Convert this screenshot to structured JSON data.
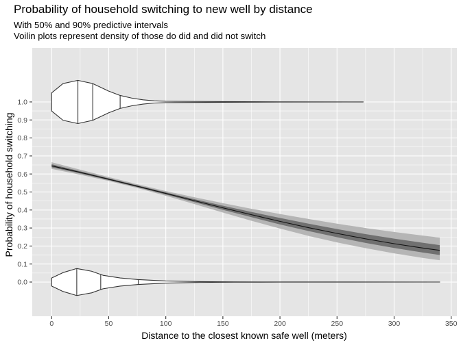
{
  "chart_data": {
    "type": "line",
    "title": "Probability of household switching to new well by distance",
    "subtitle_lines": [
      "With 50% and 90% predictive intervals",
      "Voilin plots represent density of those do did and did not switch"
    ],
    "xlabel": "Distance to the closest known safe well (meters)",
    "ylabel": "Probability of household switching",
    "xlim": [
      -17,
      355
    ],
    "ylim": [
      -0.19,
      1.3
    ],
    "x_ticks": [
      0,
      50,
      100,
      150,
      200,
      250,
      300,
      350
    ],
    "y_ticks": [
      0.0,
      0.1,
      0.2,
      0.3,
      0.4,
      0.5,
      0.6,
      0.7,
      0.8,
      0.9,
      1.0
    ],
    "grid": true,
    "series": [
      {
        "role": "fitted probability",
        "x": [
          0,
          25,
          50,
          75,
          100,
          125,
          150,
          175,
          200,
          225,
          250,
          275,
          300,
          325,
          340
        ],
        "y": [
          0.645,
          0.609,
          0.571,
          0.532,
          0.492,
          0.452,
          0.412,
          0.374,
          0.337,
          0.302,
          0.27,
          0.24,
          0.213,
          0.189,
          0.176
        ]
      }
    ],
    "bands": [
      {
        "role": "90% interval",
        "x": [
          0,
          25,
          50,
          75,
          100,
          125,
          150,
          175,
          200,
          225,
          250,
          275,
          300,
          325,
          340
        ],
        "lower": [
          0.628,
          0.596,
          0.561,
          0.522,
          0.479,
          0.433,
          0.386,
          0.34,
          0.297,
          0.256,
          0.22,
          0.188,
          0.159,
          0.134,
          0.121
        ],
        "upper": [
          0.665,
          0.624,
          0.583,
          0.543,
          0.505,
          0.471,
          0.438,
          0.407,
          0.378,
          0.35,
          0.324,
          0.3,
          0.278,
          0.258,
          0.247
        ]
      },
      {
        "role": "50% interval",
        "x": [
          0,
          25,
          50,
          75,
          100,
          125,
          150,
          175,
          200,
          225,
          250,
          275,
          300,
          325,
          340
        ],
        "lower": [
          0.637,
          0.603,
          0.566,
          0.527,
          0.486,
          0.444,
          0.401,
          0.36,
          0.32,
          0.283,
          0.249,
          0.217,
          0.189,
          0.164,
          0.15
        ],
        "upper": [
          0.654,
          0.615,
          0.576,
          0.537,
          0.498,
          0.46,
          0.424,
          0.389,
          0.356,
          0.324,
          0.294,
          0.266,
          0.241,
          0.218,
          0.205
        ]
      }
    ],
    "violins": [
      {
        "y_center": 1.0,
        "half_height": 0.12,
        "x_end": 273,
        "quantiles": [
          23,
          36,
          60
        ],
        "density": [
          [
            0,
            0.42
          ],
          [
            10,
            0.85
          ],
          [
            23,
            1.0
          ],
          [
            36,
            0.85
          ],
          [
            50,
            0.5
          ],
          [
            60,
            0.3
          ],
          [
            70,
            0.18
          ],
          [
            80,
            0.1
          ],
          [
            90,
            0.05
          ],
          [
            100,
            0.03
          ],
          [
            150,
            0.015
          ],
          [
            200,
            0.005
          ],
          [
            273,
            0.0
          ]
        ]
      },
      {
        "y_center": 0.0,
        "half_height": 0.075,
        "x_end": 340,
        "quantiles": [
          22,
          43,
          76
        ],
        "density": [
          [
            0,
            0.3
          ],
          [
            10,
            0.7
          ],
          [
            22,
            1.0
          ],
          [
            35,
            0.8
          ],
          [
            45,
            0.5
          ],
          [
            60,
            0.3
          ],
          [
            76,
            0.18
          ],
          [
            100,
            0.08
          ],
          [
            130,
            0.03
          ],
          [
            160,
            0.012
          ],
          [
            200,
            0.003
          ],
          [
            340,
            0.0
          ]
        ]
      }
    ],
    "colors": {
      "panel_bg": "#e5e5e5",
      "grid": "#ffffff",
      "band_outer": "#b5b5b5",
      "band_inner": "#707070",
      "line": "#111111",
      "violin_fill": "#ffffff",
      "violin_stroke": "#333333"
    }
  }
}
